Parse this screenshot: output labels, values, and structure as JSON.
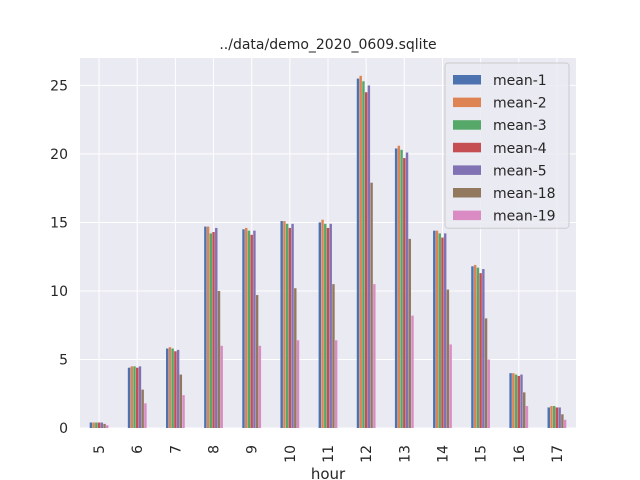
{
  "chart_data": {
    "type": "bar",
    "title": "../data/demo_2020_0609.sqlite",
    "xlabel": "hour",
    "ylabel": "",
    "categories": [
      "5",
      "6",
      "7",
      "8",
      "9",
      "10",
      "11",
      "12",
      "13",
      "14",
      "15",
      "16",
      "17"
    ],
    "ylim": [
      0,
      27
    ],
    "yticks": [
      0,
      5,
      10,
      15,
      20,
      25
    ],
    "grid": true,
    "legend_position": "top-right",
    "series": [
      {
        "name": "mean-1",
        "color": "#4c72b0",
        "values": [
          0.4,
          4.4,
          5.8,
          14.7,
          14.5,
          15.1,
          15.0,
          25.5,
          20.4,
          14.4,
          11.8,
          4.0,
          1.5
        ]
      },
      {
        "name": "mean-2",
        "color": "#dd8452",
        "values": [
          0.4,
          4.5,
          5.9,
          14.7,
          14.6,
          15.1,
          15.2,
          25.7,
          20.6,
          14.4,
          11.9,
          4.0,
          1.6
        ]
      },
      {
        "name": "mean-3",
        "color": "#55a868",
        "values": [
          0.4,
          4.5,
          5.8,
          14.2,
          14.4,
          14.9,
          14.9,
          25.3,
          20.3,
          14.2,
          11.7,
          3.9,
          1.6
        ]
      },
      {
        "name": "mean-4",
        "color": "#c44e52",
        "values": [
          0.4,
          4.4,
          5.6,
          14.3,
          14.1,
          14.6,
          14.6,
          24.5,
          19.7,
          13.9,
          11.3,
          3.8,
          1.5
        ]
      },
      {
        "name": "mean-5",
        "color": "#8172b3",
        "values": [
          0.4,
          4.5,
          5.7,
          14.6,
          14.4,
          14.9,
          14.9,
          25.0,
          20.1,
          14.2,
          11.6,
          3.9,
          1.5
        ]
      },
      {
        "name": "mean-18",
        "color": "#937860",
        "values": [
          0.3,
          2.8,
          3.9,
          10.0,
          9.7,
          10.2,
          10.5,
          17.9,
          13.8,
          10.1,
          8.0,
          2.6,
          1.0
        ]
      },
      {
        "name": "mean-19",
        "color": "#da8bc3",
        "values": [
          0.2,
          1.8,
          2.4,
          6.0,
          6.0,
          6.4,
          6.4,
          10.5,
          8.2,
          6.1,
          5.0,
          1.6,
          0.6
        ]
      }
    ]
  }
}
